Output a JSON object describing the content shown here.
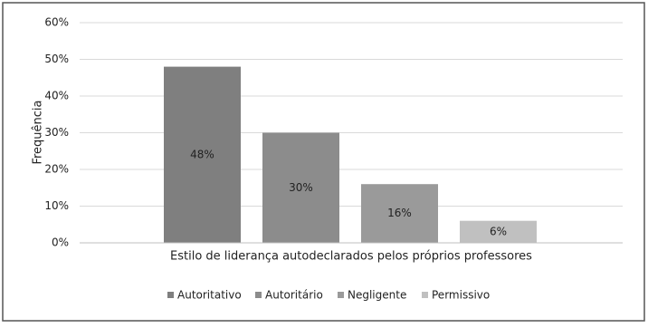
{
  "chart_data": {
    "type": "bar",
    "y_label": "Frequência",
    "categories": [
      "Estilo de liderança autodeclarados pelos próprios professores"
    ],
    "series": [
      {
        "name": "Autoritativo",
        "color": "#7f7f7f",
        "values": [
          48
        ],
        "value_labels": [
          "48%"
        ]
      },
      {
        "name": "Autoritário",
        "color": "#8c8c8c",
        "values": [
          30
        ],
        "value_labels": [
          "30%"
        ]
      },
      {
        "name": "Negligente",
        "color": "#9a9a9a",
        "values": [
          16
        ],
        "value_labels": [
          "16%"
        ]
      },
      {
        "name": "Permissivo",
        "color": "#c0c0c0",
        "values": [
          6
        ],
        "value_labels": [
          "6%"
        ]
      }
    ],
    "ylim": [
      0,
      60
    ],
    "yticks": [
      {
        "value": 0,
        "label": "0%"
      },
      {
        "value": 10,
        "label": "10%"
      },
      {
        "value": 20,
        "label": "20%"
      },
      {
        "value": 30,
        "label": "30%"
      },
      {
        "value": 40,
        "label": "40%"
      },
      {
        "value": 50,
        "label": "50%"
      },
      {
        "value": 60,
        "label": "60%"
      }
    ],
    "grid": true,
    "legend": "bottom"
  }
}
